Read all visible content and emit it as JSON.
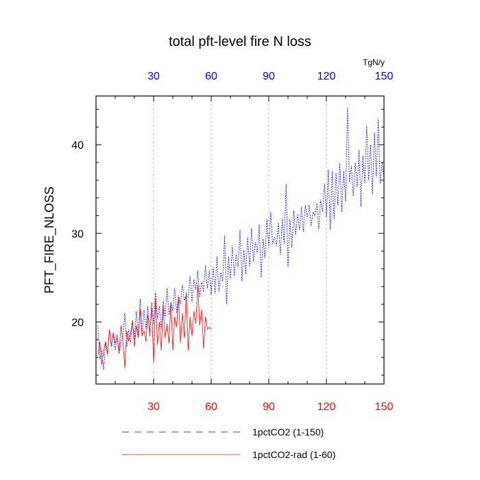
{
  "chart_data": {
    "type": "line",
    "title": "total pft-level fire N loss",
    "ylabel": "PFT_FIRE_NLOSS",
    "units": "TgN/y",
    "xlim": [
      0,
      150
    ],
    "ylim": [
      13,
      45.5
    ],
    "x_ticks": [
      30,
      60,
      90,
      120,
      150
    ],
    "y_ticks": [
      20,
      30,
      40
    ],
    "colors": {
      "series1": "#0000ff",
      "series2": "#ff0000",
      "top_ticks": "#0000ff",
      "bottom_ticks": "#ff0000"
    },
    "grid": "vertical-dashed",
    "series": [
      {
        "name": "1pctCO2 (1-150)",
        "line_style": "dashed",
        "color": "#0000ff",
        "x_start": 1,
        "values": [
          19.6,
          15.8,
          16.8,
          14.6,
          17.6,
          16.2,
          19.0,
          17.4,
          18.6,
          16.8,
          18.6,
          16.4,
          17.8,
          18.2,
          21.0,
          17.2,
          19.2,
          17.6,
          20.0,
          18.0,
          21.2,
          18.2,
          22.6,
          18.6,
          21.4,
          19.2,
          21.8,
          18.4,
          22.2,
          19.6,
          23.4,
          20.4,
          21.8,
          19.2,
          22.4,
          20.6,
          23.8,
          20.8,
          22.2,
          21.2,
          23.8,
          21.0,
          23.0,
          22.0,
          24.2,
          22.4,
          23.0,
          22.8,
          25.2,
          22.2,
          24.8,
          23.6,
          25.8,
          22.8,
          24.6,
          23.4,
          26.4,
          23.8,
          25.8,
          23.0,
          26.2,
          23.2,
          27.4,
          23.4,
          25.6,
          24.6,
          29.8,
          22.0,
          27.4,
          24.8,
          28.6,
          25.2,
          27.6,
          26.2,
          30.4,
          24.6,
          28.2,
          25.4,
          29.6,
          26.2,
          30.6,
          26.8,
          29.0,
          27.8,
          31.0,
          25.0,
          29.4,
          27.2,
          31.6,
          28.4,
          32.4,
          28.8,
          29.6,
          28.6,
          31.2,
          27.6,
          31.6,
          28.8,
          35.6,
          26.2,
          31.6,
          28.4,
          32.6,
          29.8,
          32.2,
          30.4,
          33.0,
          30.2,
          33.2,
          31.8,
          33.2,
          30.8,
          32.4,
          32.0,
          33.4,
          30.4,
          33.8,
          32.4,
          35.6,
          31.8,
          37.2,
          30.4,
          37.0,
          31.6,
          36.8,
          33.2,
          38.0,
          32.4,
          37.0,
          33.6,
          44.2,
          35.8,
          37.6,
          34.2,
          38.0,
          35.2,
          39.4,
          33.0,
          38.8,
          35.6,
          42.2,
          36.0,
          40.0,
          34.4,
          41.4,
          36.4,
          43.0,
          35.6,
          38.0,
          36.2
        ]
      },
      {
        "name": "1pctCO2-rad (1-60)",
        "line_style": "solid",
        "color": "#ff0000",
        "x_start": 1,
        "values": [
          16.2,
          17.8,
          15.2,
          16.8,
          17.8,
          16.4,
          19.2,
          17.2,
          18.8,
          17.6,
          18.2,
          16.6,
          19.6,
          17.8,
          14.8,
          19.0,
          17.8,
          18.6,
          20.2,
          17.2,
          19.6,
          18.2,
          21.4,
          18.4,
          19.0,
          17.8,
          20.8,
          18.8,
          21.6,
          15.4,
          22.6,
          17.4,
          20.0,
          16.8,
          21.8,
          18.2,
          19.8,
          17.6,
          22.2,
          16.8,
          20.6,
          19.4,
          22.8,
          17.6,
          21.0,
          18.2,
          23.4,
          16.8,
          20.6,
          18.4,
          21.2,
          19.8,
          24.2,
          19.6,
          21.4,
          17.0,
          20.6,
          19.2,
          19.4,
          19.2
        ]
      }
    ]
  }
}
